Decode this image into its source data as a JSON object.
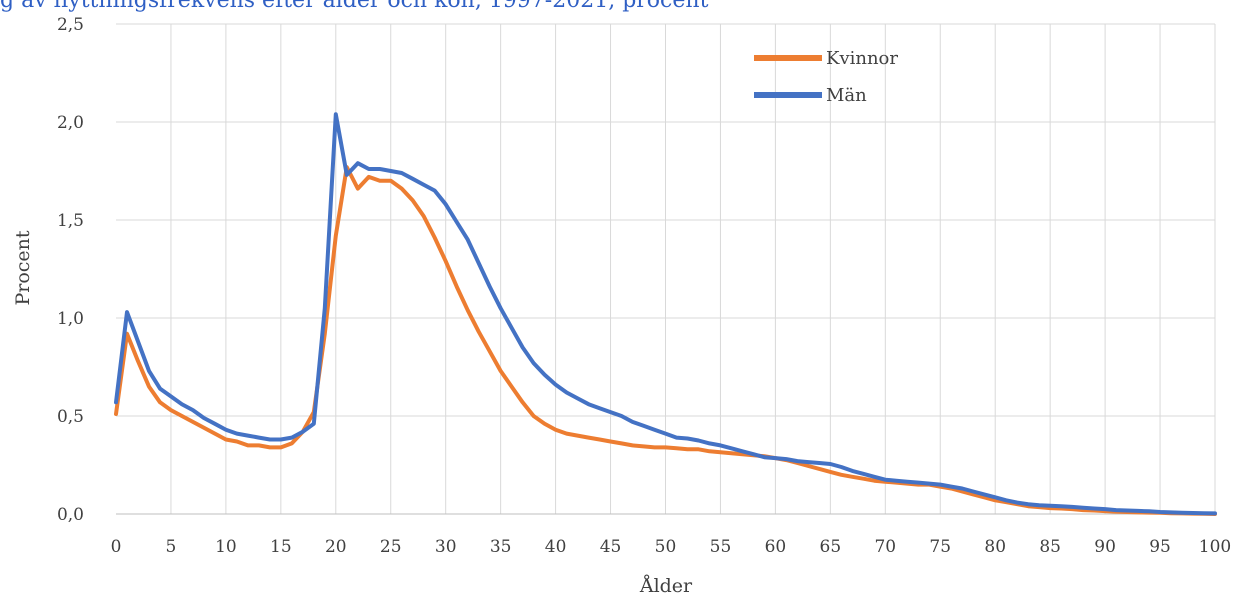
{
  "header": {
    "title": "g av flyttningsfrekvens efter ålder och kön, 1997-2021, procent"
  },
  "chart_data": {
    "type": "line",
    "title": "",
    "xlabel": "Ålder",
    "ylabel": "Procent",
    "xlim": [
      0,
      100
    ],
    "ylim": [
      0,
      2.5
    ],
    "x_ticks": [
      "0",
      "5",
      "10",
      "15",
      "20",
      "25",
      "30",
      "35",
      "40",
      "45",
      "50",
      "55",
      "60",
      "65",
      "70",
      "75",
      "80",
      "85",
      "90",
      "95",
      "100"
    ],
    "y_ticks": [
      "0,0",
      "0,5",
      "1,0",
      "1,5",
      "2,0",
      "2,5"
    ],
    "grid": true,
    "legend_position": "top-right",
    "series": [
      {
        "name": "Kvinnor",
        "color": "#ed7d31",
        "points": [
          [
            0,
            0.51
          ],
          [
            1,
            0.92
          ],
          [
            2,
            0.78
          ],
          [
            3,
            0.65
          ],
          [
            4,
            0.57
          ],
          [
            5,
            0.53
          ],
          [
            6,
            0.5
          ],
          [
            7,
            0.47
          ],
          [
            8,
            0.44
          ],
          [
            9,
            0.41
          ],
          [
            10,
            0.38
          ],
          [
            11,
            0.37
          ],
          [
            12,
            0.35
          ],
          [
            13,
            0.35
          ],
          [
            14,
            0.34
          ],
          [
            15,
            0.34
          ],
          [
            16,
            0.36
          ],
          [
            17,
            0.42
          ],
          [
            18,
            0.52
          ],
          [
            19,
            0.92
          ],
          [
            20,
            1.42
          ],
          [
            21,
            1.77
          ],
          [
            22,
            1.66
          ],
          [
            23,
            1.72
          ],
          [
            24,
            1.7
          ],
          [
            25,
            1.7
          ],
          [
            26,
            1.66
          ],
          [
            27,
            1.6
          ],
          [
            28,
            1.52
          ],
          [
            29,
            1.41
          ],
          [
            30,
            1.29
          ],
          [
            31,
            1.16
          ],
          [
            32,
            1.04
          ],
          [
            33,
            0.93
          ],
          [
            34,
            0.83
          ],
          [
            35,
            0.73
          ],
          [
            36,
            0.65
          ],
          [
            37,
            0.57
          ],
          [
            38,
            0.5
          ],
          [
            39,
            0.46
          ],
          [
            40,
            0.43
          ],
          [
            41,
            0.41
          ],
          [
            42,
            0.4
          ],
          [
            43,
            0.39
          ],
          [
            44,
            0.38
          ],
          [
            45,
            0.37
          ],
          [
            46,
            0.36
          ],
          [
            47,
            0.35
          ],
          [
            48,
            0.345
          ],
          [
            49,
            0.34
          ],
          [
            50,
            0.34
          ],
          [
            51,
            0.335
          ],
          [
            52,
            0.33
          ],
          [
            53,
            0.33
          ],
          [
            54,
            0.32
          ],
          [
            55,
            0.315
          ],
          [
            56,
            0.31
          ],
          [
            57,
            0.305
          ],
          [
            58,
            0.3
          ],
          [
            59,
            0.295
          ],
          [
            60,
            0.285
          ],
          [
            61,
            0.275
          ],
          [
            62,
            0.26
          ],
          [
            63,
            0.245
          ],
          [
            64,
            0.23
          ],
          [
            65,
            0.215
          ],
          [
            66,
            0.2
          ],
          [
            67,
            0.19
          ],
          [
            68,
            0.18
          ],
          [
            69,
            0.17
          ],
          [
            70,
            0.165
          ],
          [
            71,
            0.16
          ],
          [
            72,
            0.155
          ],
          [
            73,
            0.15
          ],
          [
            74,
            0.15
          ],
          [
            75,
            0.14
          ],
          [
            76,
            0.13
          ],
          [
            77,
            0.115
          ],
          [
            78,
            0.1
          ],
          [
            79,
            0.085
          ],
          [
            80,
            0.07
          ],
          [
            81,
            0.06
          ],
          [
            82,
            0.05
          ],
          [
            83,
            0.04
          ],
          [
            84,
            0.035
          ],
          [
            85,
            0.03
          ],
          [
            86,
            0.028
          ],
          [
            87,
            0.025
          ],
          [
            88,
            0.02
          ],
          [
            89,
            0.018
          ],
          [
            90,
            0.015
          ],
          [
            91,
            0.012
          ],
          [
            92,
            0.01
          ],
          [
            93,
            0.008
          ],
          [
            94,
            0.007
          ],
          [
            95,
            0.006
          ],
          [
            96,
            0.004
          ],
          [
            97,
            0.003
          ],
          [
            98,
            0.002
          ],
          [
            99,
            0.001
          ],
          [
            100,
            0.0
          ]
        ]
      },
      {
        "name": "Män",
        "color": "#4472c4",
        "points": [
          [
            0,
            0.57
          ],
          [
            1,
            1.03
          ],
          [
            2,
            0.88
          ],
          [
            3,
            0.73
          ],
          [
            4,
            0.64
          ],
          [
            5,
            0.6
          ],
          [
            6,
            0.56
          ],
          [
            7,
            0.53
          ],
          [
            8,
            0.49
          ],
          [
            9,
            0.46
          ],
          [
            10,
            0.43
          ],
          [
            11,
            0.41
          ],
          [
            12,
            0.4
          ],
          [
            13,
            0.39
          ],
          [
            14,
            0.38
          ],
          [
            15,
            0.38
          ],
          [
            16,
            0.39
          ],
          [
            17,
            0.42
          ],
          [
            18,
            0.46
          ],
          [
            19,
            1.05
          ],
          [
            20,
            2.04
          ],
          [
            21,
            1.73
          ],
          [
            22,
            1.79
          ],
          [
            23,
            1.76
          ],
          [
            24,
            1.76
          ],
          [
            25,
            1.75
          ],
          [
            26,
            1.74
          ],
          [
            27,
            1.71
          ],
          [
            28,
            1.68
          ],
          [
            29,
            1.65
          ],
          [
            30,
            1.58
          ],
          [
            31,
            1.49
          ],
          [
            32,
            1.4
          ],
          [
            33,
            1.28
          ],
          [
            34,
            1.16
          ],
          [
            35,
            1.05
          ],
          [
            36,
            0.95
          ],
          [
            37,
            0.85
          ],
          [
            38,
            0.77
          ],
          [
            39,
            0.71
          ],
          [
            40,
            0.66
          ],
          [
            41,
            0.62
          ],
          [
            42,
            0.59
          ],
          [
            43,
            0.56
          ],
          [
            44,
            0.54
          ],
          [
            45,
            0.52
          ],
          [
            46,
            0.5
          ],
          [
            47,
            0.47
          ],
          [
            48,
            0.45
          ],
          [
            49,
            0.43
          ],
          [
            50,
            0.41
          ],
          [
            51,
            0.39
          ],
          [
            52,
            0.385
          ],
          [
            53,
            0.375
          ],
          [
            54,
            0.36
          ],
          [
            55,
            0.35
          ],
          [
            56,
            0.335
          ],
          [
            57,
            0.32
          ],
          [
            58,
            0.305
          ],
          [
            59,
            0.29
          ],
          [
            60,
            0.285
          ],
          [
            61,
            0.28
          ],
          [
            62,
            0.27
          ],
          [
            63,
            0.265
          ],
          [
            64,
            0.26
          ],
          [
            65,
            0.255
          ],
          [
            66,
            0.24
          ],
          [
            67,
            0.22
          ],
          [
            68,
            0.205
          ],
          [
            69,
            0.19
          ],
          [
            70,
            0.175
          ],
          [
            71,
            0.17
          ],
          [
            72,
            0.165
          ],
          [
            73,
            0.16
          ],
          [
            74,
            0.155
          ],
          [
            75,
            0.15
          ],
          [
            76,
            0.14
          ],
          [
            77,
            0.13
          ],
          [
            78,
            0.115
          ],
          [
            79,
            0.1
          ],
          [
            80,
            0.085
          ],
          [
            81,
            0.07
          ],
          [
            82,
            0.058
          ],
          [
            83,
            0.05
          ],
          [
            84,
            0.045
          ],
          [
            85,
            0.042
          ],
          [
            86,
            0.04
          ],
          [
            87,
            0.036
          ],
          [
            88,
            0.032
          ],
          [
            89,
            0.028
          ],
          [
            90,
            0.025
          ],
          [
            91,
            0.02
          ],
          [
            92,
            0.018
          ],
          [
            93,
            0.016
          ],
          [
            94,
            0.014
          ],
          [
            95,
            0.01
          ],
          [
            96,
            0.008
          ],
          [
            97,
            0.006
          ],
          [
            98,
            0.005
          ],
          [
            99,
            0.004
          ],
          [
            100,
            0.003
          ]
        ]
      }
    ]
  }
}
